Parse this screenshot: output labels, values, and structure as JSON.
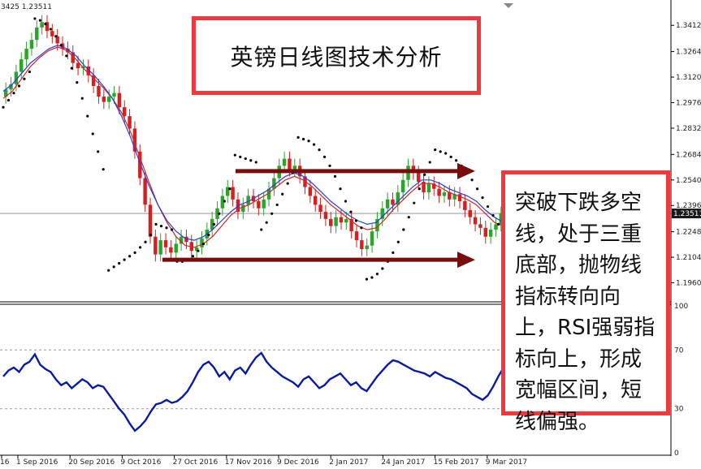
{
  "header": {
    "ohlc_fragment": "3425 1.23511"
  },
  "title_box": {
    "text": "英镑日线图技术分析"
  },
  "note_box": {
    "text": "突破下跌多空线，处于三重底部，抛物线指标转向向上，RSI强弱指标向上，形成宽幅区间，短线偏强。"
  },
  "colors": {
    "bull": "#2aa52a",
    "bear": "#d42020",
    "ma_fast": "#e02020",
    "ma_slow": "#2040e0",
    "sar": "#000000",
    "arrow": "#7a0c0c",
    "rsi": "#0a1aa8",
    "box_border": "#f0383f",
    "current_price_bg": "#1a1a1a"
  },
  "chart_data": [
    {
      "type": "candlestick",
      "title": "",
      "current_price": "1.23511",
      "ylim": [
        1.188,
        1.35
      ],
      "y_ticks": [
        "1.34120",
        "1.32640",
        "1.31200",
        "1.29760",
        "1.28320",
        "1.26840",
        "1.25400",
        "1.23960",
        "1.22480",
        "1.21040",
        "1.19600"
      ],
      "x_ticks": [
        "16",
        "1 Sep 2016",
        "20 Sep 2016",
        "9 Oct 2016",
        "27 Oct 2016",
        "17 Nov 2016",
        "9 Dec 2016",
        "2 Jan 2017",
        "24 Jan 2017",
        "15 Feb 2017",
        "9 Mar 2017"
      ],
      "series": [
        {
          "name": "",
          "type": "close",
          "values": [
            1.305,
            1.308,
            1.315,
            1.322,
            1.328,
            1.333,
            1.34,
            1.343,
            1.338,
            1.335,
            1.331,
            1.328,
            1.326,
            1.32,
            1.317,
            1.318,
            1.313,
            1.307,
            1.301,
            1.298,
            1.301,
            1.303,
            1.295,
            1.29,
            1.283,
            1.27,
            1.255,
            1.24,
            1.222,
            1.212,
            1.22,
            1.216,
            1.213,
            1.218,
            1.222,
            1.219,
            1.214,
            1.216,
            1.221,
            1.226,
            1.232,
            1.238,
            1.245,
            1.25,
            1.243,
            1.236,
            1.24,
            1.245,
            1.242,
            1.238,
            1.243,
            1.249,
            1.255,
            1.262,
            1.266,
            1.26,
            1.262,
            1.256,
            1.25,
            1.245,
            1.24,
            1.236,
            1.232,
            1.228,
            1.233,
            1.23,
            1.232,
            1.225,
            1.22,
            1.215,
            1.217,
            1.225,
            1.232,
            1.238,
            1.243,
            1.24,
            1.247,
            1.254,
            1.262,
            1.258,
            1.253,
            1.247,
            1.252,
            1.249,
            1.245,
            1.247,
            1.243,
            1.246,
            1.242,
            1.237,
            1.233,
            1.229,
            1.227,
            1.222,
            1.226,
            1.229,
            1.235
          ]
        },
        {
          "name": "",
          "type": "ma_fast",
          "values": [
            1.3,
            1.304,
            1.311,
            1.318,
            1.323,
            1.327,
            1.329,
            1.327,
            1.322,
            1.316,
            1.311,
            1.306,
            1.3,
            1.292,
            1.281,
            1.267,
            1.253,
            1.24,
            1.23,
            1.222,
            1.217,
            1.216,
            1.218,
            1.222,
            1.228,
            1.234,
            1.238,
            1.24,
            1.243,
            1.246,
            1.25,
            1.254,
            1.256,
            1.254,
            1.25,
            1.245,
            1.24,
            1.236,
            1.232,
            1.228,
            1.226,
            1.227,
            1.232,
            1.238,
            1.243,
            1.248,
            1.252,
            1.252,
            1.25,
            1.247,
            1.245,
            1.243,
            1.24,
            1.235,
            1.23,
            1.228
          ]
        },
        {
          "name": "",
          "type": "ma_slow",
          "values": [
            1.304,
            1.308,
            1.314,
            1.32,
            1.324,
            1.328,
            1.33,
            1.328,
            1.324,
            1.318,
            1.313,
            1.307,
            1.3,
            1.29,
            1.278,
            1.264,
            1.251,
            1.24,
            1.231,
            1.225,
            1.221,
            1.22,
            1.222,
            1.226,
            1.231,
            1.236,
            1.24,
            1.242,
            1.245,
            1.248,
            1.252,
            1.256,
            1.258,
            1.256,
            1.252,
            1.247,
            1.242,
            1.238,
            1.234,
            1.231,
            1.229,
            1.23,
            1.235,
            1.24,
            1.245,
            1.25,
            1.254,
            1.254,
            1.252,
            1.249,
            1.247,
            1.245,
            1.242,
            1.237,
            1.233,
            1.23
          ]
        }
      ],
      "sar_segments": [
        {
          "trend": "up",
          "values": [
            1.295,
            1.299,
            1.303,
            1.307,
            1.311,
            1.315
          ]
        },
        {
          "trend": "down",
          "values": [
            1.345,
            1.344,
            1.342,
            1.339,
            1.335,
            1.33,
            1.324,
            1.317,
            1.309,
            1.3,
            1.29,
            1.28,
            1.27,
            1.26
          ]
        },
        {
          "trend": "up",
          "values": [
            1.203,
            1.205,
            1.207,
            1.209,
            1.211,
            1.213,
            1.216,
            1.219,
            1.223
          ]
        },
        {
          "trend": "down",
          "values": [
            1.229,
            1.228,
            1.227,
            1.226
          ]
        },
        {
          "trend": "up",
          "values": [
            1.208,
            1.208,
            1.209,
            1.211,
            1.214,
            1.218,
            1.223,
            1.229,
            1.235,
            1.242,
            1.249
          ]
        },
        {
          "trend": "down",
          "values": [
            1.268,
            1.267,
            1.266,
            1.265,
            1.264
          ]
        },
        {
          "trend": "up",
          "values": [
            1.226,
            1.23,
            1.235,
            1.24,
            1.246,
            1.252,
            1.258
          ]
        },
        {
          "trend": "down",
          "values": [
            1.278,
            1.277,
            1.276,
            1.274,
            1.271,
            1.267,
            1.262,
            1.256,
            1.249,
            1.242,
            1.236,
            1.231,
            1.227
          ]
        },
        {
          "trend": "up",
          "values": [
            1.198,
            1.199,
            1.201,
            1.204,
            1.208,
            1.213,
            1.219,
            1.226,
            1.233,
            1.241,
            1.249,
            1.257,
            1.264
          ]
        },
        {
          "trend": "down",
          "values": [
            1.271,
            1.27,
            1.269,
            1.267,
            1.265,
            1.262,
            1.258,
            1.254,
            1.249,
            1.244,
            1.239,
            1.234,
            1.229,
            1.225
          ]
        }
      ],
      "annotations": [
        {
          "type": "arrow",
          "direction": "right",
          "level": 1.259,
          "label": ""
        },
        {
          "type": "arrow",
          "direction": "right",
          "level": 1.209,
          "label": ""
        }
      ]
    },
    {
      "type": "line",
      "title": "",
      "ylim": [
        0,
        100
      ],
      "y_ticks": [
        "100",
        "70",
        "30",
        "0"
      ],
      "series": [
        {
          "name": "",
          "values": [
            52,
            56,
            58,
            55,
            60,
            62,
            67,
            60,
            57,
            55,
            50,
            46,
            48,
            44,
            47,
            50,
            48,
            44,
            46,
            45,
            40,
            35,
            30,
            26,
            20,
            15,
            18,
            22,
            28,
            33,
            34,
            36,
            34,
            35,
            38,
            42,
            48,
            55,
            60,
            62,
            58,
            52,
            55,
            50,
            56,
            58,
            54,
            60,
            65,
            68,
            62,
            58,
            55,
            52,
            50,
            48,
            45,
            50,
            52,
            48,
            44,
            46,
            50,
            52,
            54,
            50,
            46,
            48,
            44,
            42,
            47,
            52,
            56,
            60,
            63,
            62,
            60,
            58,
            56,
            55,
            54,
            52,
            55,
            53,
            51,
            50,
            48,
            46,
            44,
            40,
            38,
            36,
            39,
            45,
            52,
            58
          ]
        }
      ]
    }
  ]
}
